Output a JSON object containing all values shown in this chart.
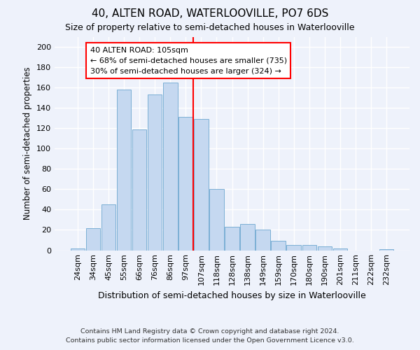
{
  "title": "40, ALTEN ROAD, WATERLOOVILLE, PO7 6DS",
  "subtitle": "Size of property relative to semi-detached houses in Waterlooville",
  "xlabel": "Distribution of semi-detached houses by size in Waterlooville",
  "ylabel": "Number of semi-detached properties",
  "categories": [
    "24sqm",
    "34sqm",
    "45sqm",
    "55sqm",
    "66sqm",
    "76sqm",
    "86sqm",
    "97sqm",
    "107sqm",
    "118sqm",
    "128sqm",
    "138sqm",
    "149sqm",
    "159sqm",
    "170sqm",
    "180sqm",
    "190sqm",
    "201sqm",
    "211sqm",
    "222sqm",
    "232sqm"
  ],
  "values": [
    2,
    22,
    45,
    158,
    119,
    153,
    165,
    131,
    129,
    60,
    23,
    26,
    20,
    9,
    5,
    5,
    4,
    2,
    0,
    0,
    1
  ],
  "bar_color": "#c5d8f0",
  "bar_edge_color": "#7bafd4",
  "background_color": "#eef2fb",
  "grid_color": "#ffffff",
  "vline_color": "red",
  "annotation_title": "40 ALTEN ROAD: 105sqm",
  "annotation_line1": "← 68% of semi-detached houses are smaller (735)",
  "annotation_line2": "30% of semi-detached houses are larger (324) →",
  "annotation_box_color": "red",
  "ylim": [
    0,
    210
  ],
  "yticks": [
    0,
    20,
    40,
    60,
    80,
    100,
    120,
    140,
    160,
    180,
    200
  ],
  "footer1": "Contains HM Land Registry data © Crown copyright and database right 2024.",
  "footer2": "Contains public sector information licensed under the Open Government Licence v3.0."
}
